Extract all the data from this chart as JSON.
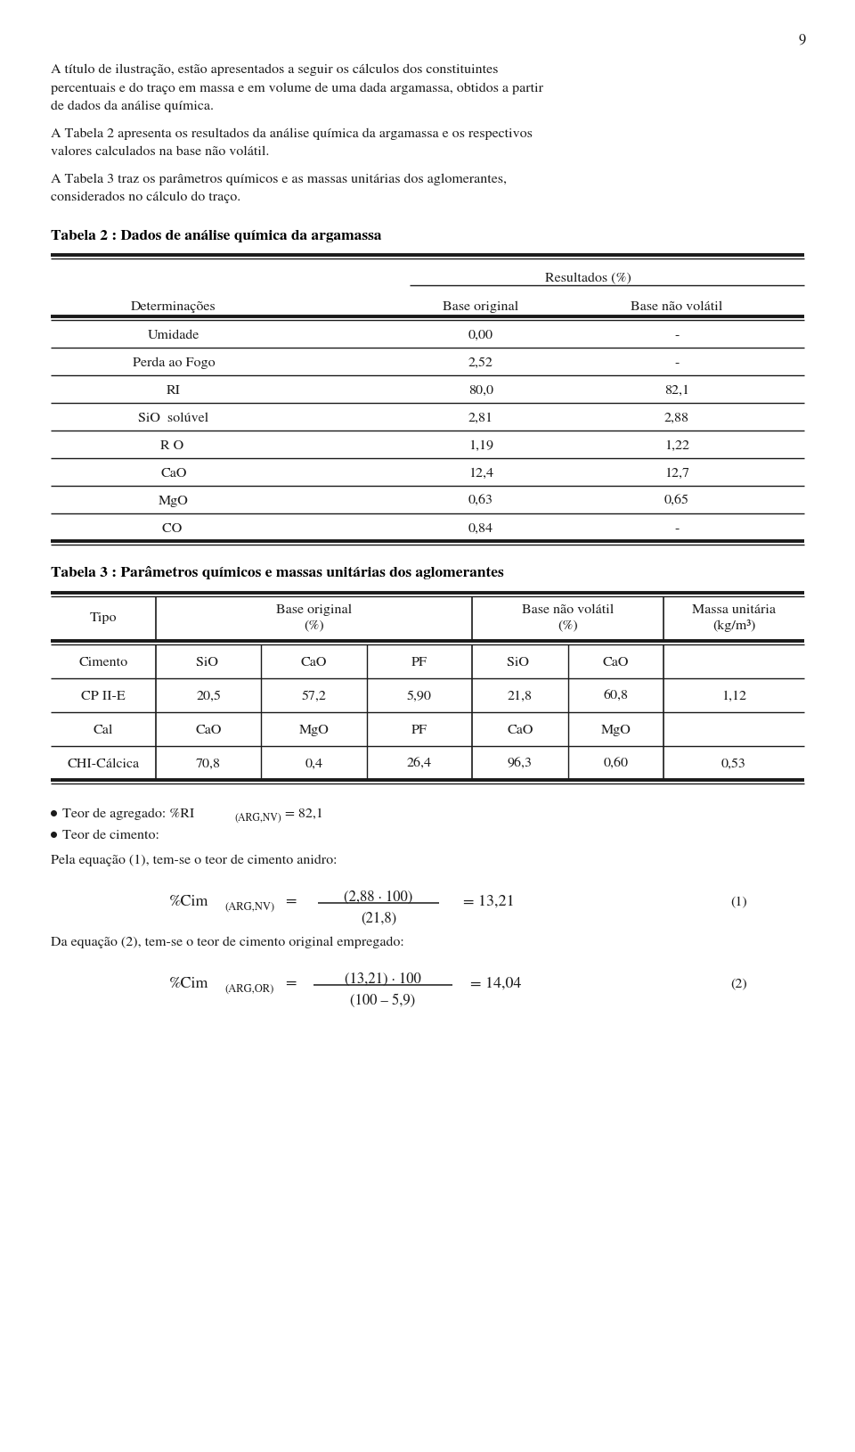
{
  "page_number": "9",
  "bg_color": "#ffffff",
  "para1_lines": [
    "A título de ilustração, estão apresentados a seguir os cálculos dos constituintes",
    "percentuais e do traço em massa e em volume de uma dada argamassa, obtidos a partir",
    "de dados da análise química."
  ],
  "para2_lines": [
    "A Tabela 2 apresenta os resultados da análise química da argamassa e os respectivos",
    "valores calculados na base não volátil."
  ],
  "para3_lines": [
    "A Tabela 3 traz os parâmetros químicos e as massas unitárias dos aglomerantes,",
    "considerados no cálculo do traço."
  ],
  "table2_title": "Tabela 2 : Dados de análise química da argamassa",
  "table2_rows": [
    [
      "Umidade",
      "0,00",
      "-"
    ],
    [
      "Perda ao Fogo",
      "2,52",
      "-"
    ],
    [
      "RI",
      "80,0",
      "82,1"
    ],
    [
      "SiO₂ solúvel",
      "2,81",
      "2,88"
    ],
    [
      "R₂O₃",
      "1,19",
      "1,22"
    ],
    [
      "CaO",
      "12,4",
      "12,7"
    ],
    [
      "MgO",
      "0,63",
      "0,65"
    ],
    [
      "CO₂",
      "0,84",
      "-"
    ]
  ],
  "table3_title": "Tabela 3 : Parâmetros químicos e massas unitárias dos aglomerantes",
  "table3_rows": [
    [
      "Cimento",
      "SiO₂",
      "CaO",
      "PF",
      "SiO₂",
      "CaO",
      ""
    ],
    [
      "CP II-E",
      "20,5",
      "57,2",
      "5,90",
      "21,8",
      "60,8",
      "1,12"
    ],
    [
      "Cal",
      "CaO",
      "MgO",
      "PF",
      "CaO",
      "MgO",
      ""
    ],
    [
      "CHI-Cálcica",
      "70,8",
      "0,4",
      "26,4",
      "96,3",
      "0,60",
      "0,53"
    ]
  ],
  "bullet1_text": "Teor de agregado: %RI",
  "bullet1_sub": "(ARG,NV)",
  "bullet1_end": "= 82,1",
  "bullet2_text": "Teor de cimento:",
  "eq_intro1": "Pela equação (1), tem-se o teor de cimento anidro:",
  "eq_intro2": "Da equação (2), tem-se o teor de cimento original empregado:"
}
